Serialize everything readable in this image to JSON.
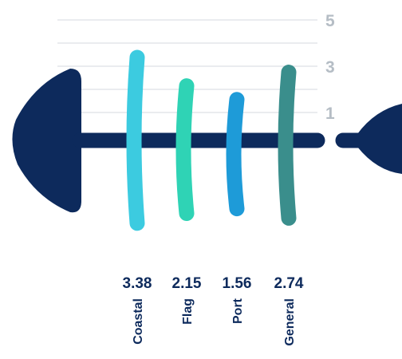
{
  "chart_data": {
    "type": "bar",
    "title": "",
    "xlabel": "",
    "ylabel": "",
    "categories": [
      "Coastal",
      "Flag",
      "Port",
      "General"
    ],
    "values": [
      3.38,
      2.15,
      1.56,
      2.74
    ],
    "value_labels": [
      "3.38",
      "2.15",
      "1.56",
      "2.74"
    ],
    "ylim": [
      0,
      5
    ],
    "y_ticks": [
      1,
      3,
      5
    ],
    "y_tick_labels": [
      "1",
      "3",
      "5"
    ],
    "grid": true,
    "legend": "none",
    "colors": {
      "fish": "#0d2a5c",
      "grid": "#e3e6ea",
      "tick_text": "#b5bdc5",
      "bars": [
        "#3ccbe0",
        "#2fd3b5",
        "#1e9bd8",
        "#3a8e8c"
      ]
    }
  }
}
